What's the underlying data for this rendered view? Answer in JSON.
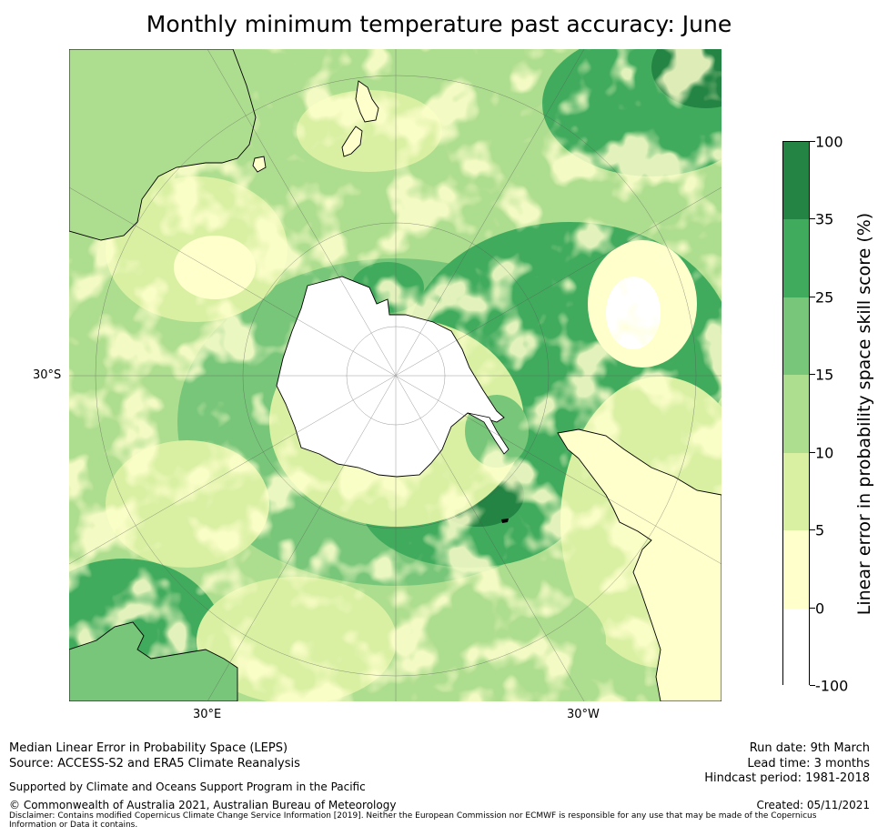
{
  "title": "Monthly minimum temperature past accuracy: June",
  "map": {
    "projection": "south-polar-stereographic",
    "lat_labels": [
      "30°S"
    ],
    "lon_labels": [
      "30°E",
      "30°W"
    ],
    "palette": [
      "#ffffff",
      "#ffffcc",
      "#d9f0a3",
      "#addd8e",
      "#78c679",
      "#41ab5d",
      "#238443"
    ]
  },
  "colorbar": {
    "label": "Linear error in probability space skill score (%)",
    "ticks": [
      "100",
      "35",
      "25",
      "15",
      "10",
      "5",
      "0",
      "-100"
    ],
    "colors": [
      "#238443",
      "#41ab5d",
      "#78c679",
      "#addd8e",
      "#d9f0a3",
      "#ffffcc",
      "#ffffff"
    ]
  },
  "footer": {
    "line1": "Median Linear Error in Probability Space (LEPS)",
    "line2": "Source: ACCESS-S2 and ERA5 Climate Reanalysis",
    "support": "Supported by Climate and Oceans Support Program in the Pacific",
    "copyright": "© Commonwealth of Australia 2021, Australian Bureau of Meteorology",
    "disclaimer": "Disclaimer: Contains modified Copernicus Climate Change Service Information [2019]. Neither the European Commission nor ECMWF is responsible for any use that may be made of the Copernicus Information or Data it contains.",
    "run_date": "Run date: 9th March",
    "lead_time": "Lead time: 3 months",
    "hindcast": "Hindcast period: 1981-2018",
    "created": "Created: 05/11/2021"
  }
}
